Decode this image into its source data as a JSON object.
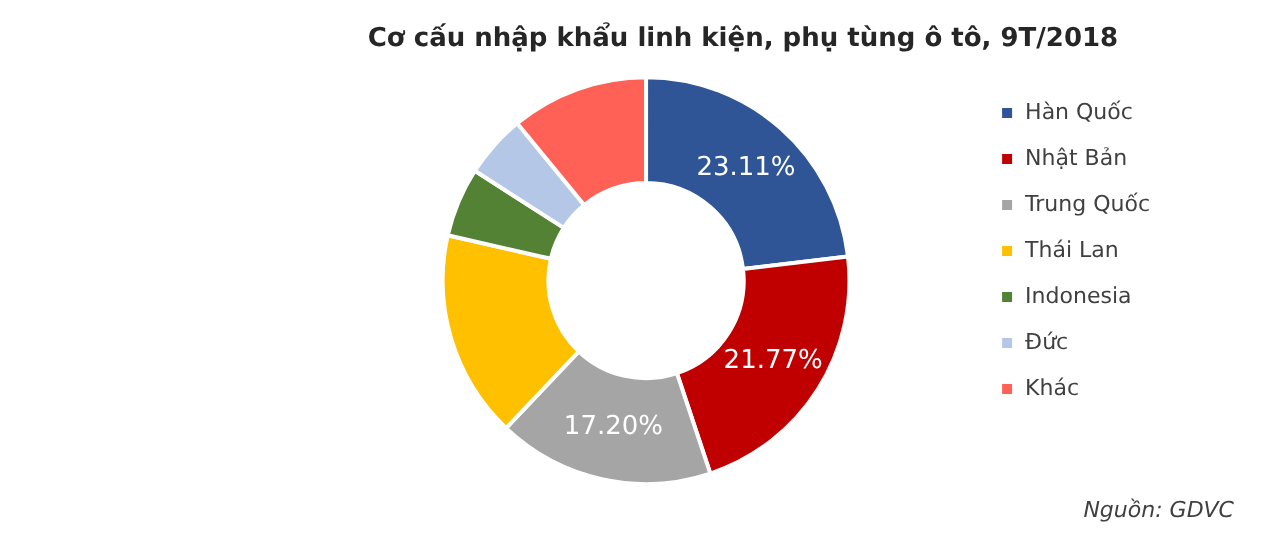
{
  "chart_data": {
    "type": "donut",
    "title": "Cơ cấu nhập khẩu linh kiện, phụ tùng ô tô, 9T/2018",
    "categories": [
      "Hàn Quốc",
      "Nhật Bản",
      "Trung Quốc",
      "Thái Lan",
      "Indonesia",
      "Đức",
      "Khác"
    ],
    "values": [
      23.11,
      21.77,
      17.2,
      16.5,
      5.5,
      5.0,
      10.92
    ],
    "colors": [
      "#2f5597",
      "#c00000",
      "#a5a5a5",
      "#ffc000",
      "#548235",
      "#b4c7e7",
      "#ff6157"
    ],
    "value_labels": [
      "23.11%",
      "21.77%",
      "17.20%",
      null,
      null,
      null,
      null
    ],
    "legend": "right",
    "annotations": [
      "Nguồn: GDVC"
    ]
  }
}
